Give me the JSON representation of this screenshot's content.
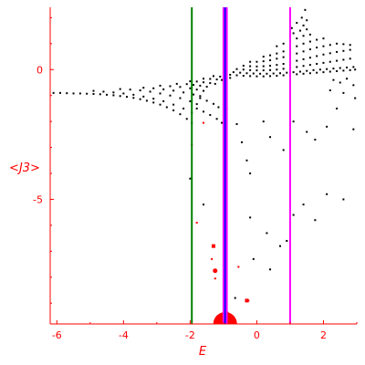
{
  "chart_data": {
    "type": "scatter",
    "title": "",
    "xlabel": "E",
    "ylabel": "<J3>",
    "xlim": [
      -6.2,
      3.0
    ],
    "ylim": [
      -9.8,
      2.4
    ],
    "x_ticks": [
      -6,
      -4,
      -2,
      0,
      2
    ],
    "x_tick_labels": [
      "-6",
      "-4",
      "-2",
      "0",
      "2"
    ],
    "y_ticks": [
      -5,
      0
    ],
    "y_tick_labels": [
      "-5",
      "0"
    ],
    "axis_color": "#ff0000",
    "grid": false,
    "vertical_lines": [
      {
        "x": -1.95,
        "color": "#008000"
      },
      {
        "x": -1.0,
        "color": "#ff00ff"
      },
      {
        "x": -0.95,
        "color": "#0000ff"
      },
      {
        "x": -0.9,
        "color": "#ff00ff"
      },
      {
        "x": 1.0,
        "color": "#ff00ff"
      }
    ],
    "series": [
      {
        "color": "#000000",
        "marker": "dot",
        "points": [
          [
            -6.1,
            -0.9
          ],
          [
            -5.9,
            -0.9
          ],
          [
            -5.7,
            -0.91
          ],
          [
            -5.5,
            -0.92
          ],
          [
            -5.3,
            -0.92
          ],
          [
            -5.1,
            -0.93
          ],
          [
            -4.9,
            -0.94
          ],
          [
            -4.7,
            -0.95
          ],
          [
            -4.5,
            -0.97
          ],
          [
            -4.3,
            -0.99
          ],
          [
            -4.1,
            -1.02
          ],
          [
            -3.9,
            -1.05
          ],
          [
            -3.7,
            -1.09
          ],
          [
            -3.5,
            -1.14
          ],
          [
            -3.3,
            -1.2
          ],
          [
            -3.1,
            -1.27
          ],
          [
            -2.9,
            -1.35
          ],
          [
            -2.7,
            -1.45
          ],
          [
            -2.5,
            -1.57
          ],
          [
            -2.3,
            -1.72
          ],
          [
            -2.1,
            -1.9
          ],
          [
            -1.95,
            -2.05
          ],
          [
            -4.9,
            -0.82
          ],
          [
            -4.6,
            -0.85
          ],
          [
            -4.3,
            -0.88
          ],
          [
            -4.0,
            -0.92
          ],
          [
            -3.7,
            -0.97
          ],
          [
            -3.4,
            -1.04
          ],
          [
            -3.1,
            -1.12
          ],
          [
            -2.8,
            -1.22
          ],
          [
            -2.5,
            -1.35
          ],
          [
            -2.2,
            -1.5
          ],
          [
            -1.95,
            -1.66
          ],
          [
            -4.1,
            -0.75
          ],
          [
            -3.8,
            -0.77
          ],
          [
            -3.5,
            -0.8
          ],
          [
            -3.2,
            -0.85
          ],
          [
            -2.9,
            -0.92
          ],
          [
            -2.6,
            -1.0
          ],
          [
            -2.3,
            -1.1
          ],
          [
            -2.0,
            -1.22
          ],
          [
            -1.8,
            -1.33
          ],
          [
            -3.4,
            -0.7
          ],
          [
            -3.1,
            -0.72
          ],
          [
            -2.8,
            -0.76
          ],
          [
            -2.5,
            -0.81
          ],
          [
            -2.2,
            -0.88
          ],
          [
            -1.9,
            -0.96
          ],
          [
            -1.7,
            -1.02
          ],
          [
            -2.9,
            -0.62
          ],
          [
            -2.6,
            -0.64
          ],
          [
            -2.3,
            -0.67
          ],
          [
            -2.0,
            -0.72
          ],
          [
            -1.8,
            -0.77
          ],
          [
            -1.6,
            -0.82
          ],
          [
            -2.4,
            -0.55
          ],
          [
            -2.1,
            -0.56
          ],
          [
            -1.9,
            -0.59
          ],
          [
            -1.7,
            -0.62
          ],
          [
            -1.5,
            -0.66
          ],
          [
            -2.0,
            -0.45
          ],
          [
            -1.8,
            -0.46
          ],
          [
            -1.6,
            -0.49
          ],
          [
            -1.4,
            -0.52
          ],
          [
            -1.25,
            -0.55
          ],
          [
            -1.6,
            -0.35
          ],
          [
            -1.4,
            -0.36
          ],
          [
            -1.2,
            -0.38
          ],
          [
            -1.05,
            -0.4
          ],
          [
            -1.3,
            -0.25
          ],
          [
            -1.1,
            -0.27
          ],
          [
            -0.95,
            -0.3
          ],
          [
            -0.8,
            -0.32
          ],
          [
            -1.8,
            -1.5
          ],
          [
            -1.6,
            -1.62
          ],
          [
            -1.4,
            -1.75
          ],
          [
            -1.2,
            -1.9
          ],
          [
            -1.05,
            -2.05
          ],
          [
            -1.7,
            -1.1
          ],
          [
            -1.5,
            -1.2
          ],
          [
            -1.3,
            -1.32
          ],
          [
            -1.15,
            -1.45
          ],
          [
            -0.8,
            -0.2
          ],
          [
            -0.6,
            -0.22
          ],
          [
            -0.4,
            -0.24
          ],
          [
            -0.2,
            -0.25
          ],
          [
            0.0,
            -0.26
          ],
          [
            0.2,
            -0.26
          ],
          [
            0.4,
            -0.25
          ],
          [
            0.6,
            -0.24
          ],
          [
            0.8,
            -0.22
          ],
          [
            1.0,
            -0.2
          ],
          [
            1.2,
            -0.18
          ],
          [
            1.4,
            -0.16
          ],
          [
            1.6,
            -0.14
          ],
          [
            1.8,
            -0.12
          ],
          [
            2.0,
            -0.1
          ],
          [
            2.2,
            -0.08
          ],
          [
            2.4,
            -0.06
          ],
          [
            2.6,
            -0.04
          ],
          [
            2.8,
            -0.02
          ],
          [
            2.95,
            0.0
          ],
          [
            -0.7,
            -0.1
          ],
          [
            -0.5,
            -0.12
          ],
          [
            -0.3,
            -0.14
          ],
          [
            -0.1,
            -0.15
          ],
          [
            0.1,
            -0.16
          ],
          [
            0.3,
            -0.16
          ],
          [
            0.5,
            -0.15
          ],
          [
            0.7,
            -0.14
          ],
          [
            0.9,
            -0.12
          ],
          [
            1.1,
            -0.1
          ],
          [
            1.3,
            -0.08
          ],
          [
            1.5,
            -0.05
          ],
          [
            1.7,
            -0.02
          ],
          [
            1.9,
            0.0
          ],
          [
            2.1,
            0.02
          ],
          [
            2.3,
            0.04
          ],
          [
            2.5,
            0.06
          ],
          [
            2.7,
            0.08
          ],
          [
            2.9,
            0.1
          ],
          [
            -0.6,
            0.02
          ],
          [
            -0.4,
            0.0
          ],
          [
            -0.2,
            -0.02
          ],
          [
            0.0,
            -0.03
          ],
          [
            0.2,
            -0.03
          ],
          [
            0.4,
            -0.02
          ],
          [
            0.6,
            0.0
          ],
          [
            0.8,
            0.03
          ],
          [
            1.0,
            0.06
          ],
          [
            1.2,
            0.1
          ],
          [
            1.4,
            0.14
          ],
          [
            1.6,
            0.18
          ],
          [
            1.8,
            0.22
          ],
          [
            2.0,
            0.26
          ],
          [
            2.2,
            0.3
          ],
          [
            2.4,
            0.34
          ],
          [
            2.6,
            0.38
          ],
          [
            2.8,
            0.42
          ],
          [
            -0.4,
            0.15
          ],
          [
            -0.2,
            0.13
          ],
          [
            0.0,
            0.12
          ],
          [
            0.2,
            0.13
          ],
          [
            0.4,
            0.15
          ],
          [
            0.6,
            0.18
          ],
          [
            0.8,
            0.22
          ],
          [
            1.0,
            0.28
          ],
          [
            1.2,
            0.34
          ],
          [
            1.4,
            0.4
          ],
          [
            1.6,
            0.46
          ],
          [
            1.8,
            0.52
          ],
          [
            2.0,
            0.58
          ],
          [
            2.2,
            0.63
          ],
          [
            2.4,
            0.68
          ],
          [
            2.6,
            0.72
          ],
          [
            2.8,
            0.76
          ],
          [
            -0.2,
            0.3
          ],
          [
            0.0,
            0.3
          ],
          [
            0.2,
            0.32
          ],
          [
            0.4,
            0.36
          ],
          [
            0.6,
            0.42
          ],
          [
            0.8,
            0.48
          ],
          [
            1.0,
            0.55
          ],
          [
            1.2,
            0.62
          ],
          [
            1.4,
            0.7
          ],
          [
            1.6,
            0.78
          ],
          [
            1.8,
            0.85
          ],
          [
            2.0,
            0.9
          ],
          [
            2.2,
            0.95
          ],
          [
            2.4,
            1.0
          ],
          [
            2.6,
            0.98
          ],
          [
            2.8,
            0.95
          ],
          [
            0.2,
            0.5
          ],
          [
            0.4,
            0.55
          ],
          [
            0.6,
            0.62
          ],
          [
            0.8,
            0.7
          ],
          [
            1.0,
            0.8
          ],
          [
            1.2,
            0.9
          ],
          [
            1.4,
            1.0
          ],
          [
            1.6,
            1.08
          ],
          [
            1.8,
            1.15
          ],
          [
            2.0,
            1.2
          ],
          [
            0.6,
            0.9
          ],
          [
            0.8,
            1.0
          ],
          [
            1.0,
            1.1
          ],
          [
            1.2,
            1.2
          ],
          [
            1.4,
            1.3
          ],
          [
            1.6,
            1.35
          ],
          [
            1.1,
            1.4
          ],
          [
            1.3,
            1.5
          ],
          [
            1.5,
            1.55
          ],
          [
            1.2,
            1.8
          ],
          [
            1.4,
            1.7
          ],
          [
            1.05,
            1.6
          ],
          [
            1.35,
            2.0
          ],
          [
            1.45,
            2.3
          ],
          [
            1.5,
            1.9
          ],
          [
            2.3,
            -0.4
          ],
          [
            2.5,
            -0.5
          ],
          [
            2.7,
            -0.35
          ],
          [
            2.9,
            -0.6
          ],
          [
            2.2,
            -0.8
          ],
          [
            2.6,
            -0.9
          ],
          [
            2.95,
            -1.1
          ],
          [
            -0.9,
            -1.5
          ],
          [
            -0.6,
            -2.1
          ],
          [
            -0.45,
            -2.8
          ],
          [
            -0.3,
            -3.5
          ],
          [
            -0.2,
            -4.0
          ],
          [
            0.2,
            -2.0
          ],
          [
            0.4,
            -2.6
          ],
          [
            0.8,
            -3.1
          ],
          [
            1.1,
            -2.0
          ],
          [
            1.5,
            -2.4
          ],
          [
            1.75,
            -2.7
          ],
          [
            2.1,
            -2.2
          ],
          [
            2.4,
            -1.5
          ],
          [
            2.9,
            -2.3
          ],
          [
            -0.2,
            -5.7
          ],
          [
            0.3,
            -6.3
          ],
          [
            0.9,
            -6.6
          ],
          [
            1.1,
            -5.6
          ],
          [
            1.75,
            -5.8
          ],
          [
            2.1,
            -4.8
          ],
          [
            2.6,
            -5.0
          ],
          [
            -0.1,
            -7.3
          ],
          [
            0.4,
            -7.7
          ],
          [
            0.7,
            -6.8
          ],
          [
            1.4,
            -5.2
          ],
          [
            -0.65,
            -8.8
          ],
          [
            -1.6,
            -5.2
          ],
          [
            -2.0,
            -4.2
          ]
        ]
      },
      {
        "color": "#ff0000",
        "marker": "dot",
        "points": [
          [
            -1.6,
            -2.05
          ],
          [
            -1.95,
            -2.9
          ],
          [
            -1.8,
            -5.9
          ],
          [
            -1.35,
            -7.3
          ],
          [
            -1.25,
            -8.05
          ],
          [
            -0.55,
            -7.6
          ],
          [
            -0.25,
            -8.9
          ]
        ]
      },
      {
        "color": "#ff0000",
        "marker": "square",
        "points": [
          [
            -1.3,
            -6.8
          ],
          [
            -0.9,
            -9.4
          ],
          [
            -0.3,
            -8.9
          ]
        ]
      },
      {
        "color": "#ff0000",
        "marker": "bubble",
        "points": [
          [
            -1.25,
            -7.75,
            2.5
          ],
          [
            -0.95,
            -9.8,
            13
          ]
        ]
      }
    ]
  }
}
